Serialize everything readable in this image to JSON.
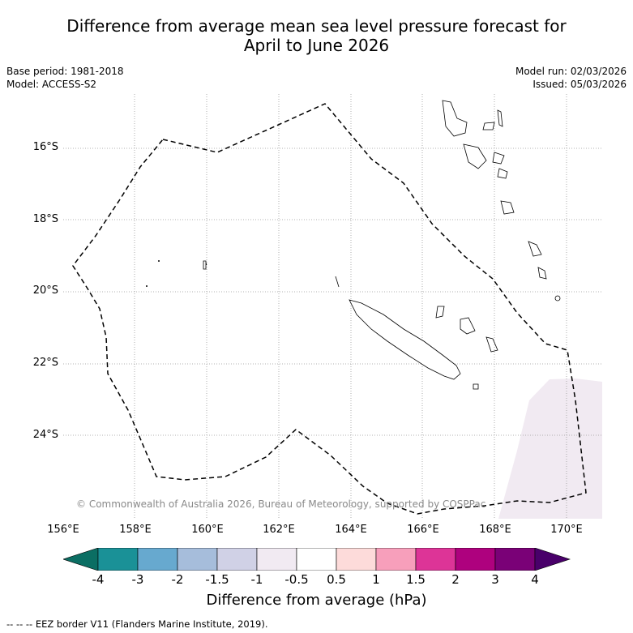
{
  "title": {
    "line1": "Difference from average mean sea level pressure forecast for",
    "line2": "April to June 2026"
  },
  "meta": {
    "base_period": "Base period: 1981-2018",
    "model": "Model: ACCESS-S2",
    "model_run": "Model run: 02/03/2026",
    "issued": "Issued: 05/03/2026"
  },
  "map": {
    "latitudes": [
      "16°S",
      "18°S",
      "20°S",
      "22°S",
      "24°S"
    ],
    "longitudes": [
      "156°E",
      "158°E",
      "160°E",
      "162°E",
      "164°E",
      "166°E",
      "168°E",
      "170°E"
    ],
    "copyright": "© Commonwealth of Australia 2026, Bureau of Meteorology, supported by COSPPac",
    "anomaly_region": "-0.5 to -1 hPa"
  },
  "colorbar": {
    "title": "Difference from average (hPa)",
    "ticks": [
      "-4",
      "-3",
      "-2",
      "-1.5",
      "-1",
      "-0.5",
      "0.5",
      "1",
      "1.5",
      "2",
      "3",
      "4"
    ],
    "colors": [
      "#1a9197",
      "#67a9cf",
      "#a6bddb",
      "#d0d1e6",
      "#f1eaf2",
      "#ffffff",
      "#fddbda",
      "#f79fbb",
      "#dd3497",
      "#ae017e",
      "#7a0177"
    ],
    "low_extend_color": "#0b6e63",
    "high_extend_color": "#49006a"
  },
  "footer": "--  --  -- EEZ border V11 (Flanders Marine Institute, 2019)."
}
